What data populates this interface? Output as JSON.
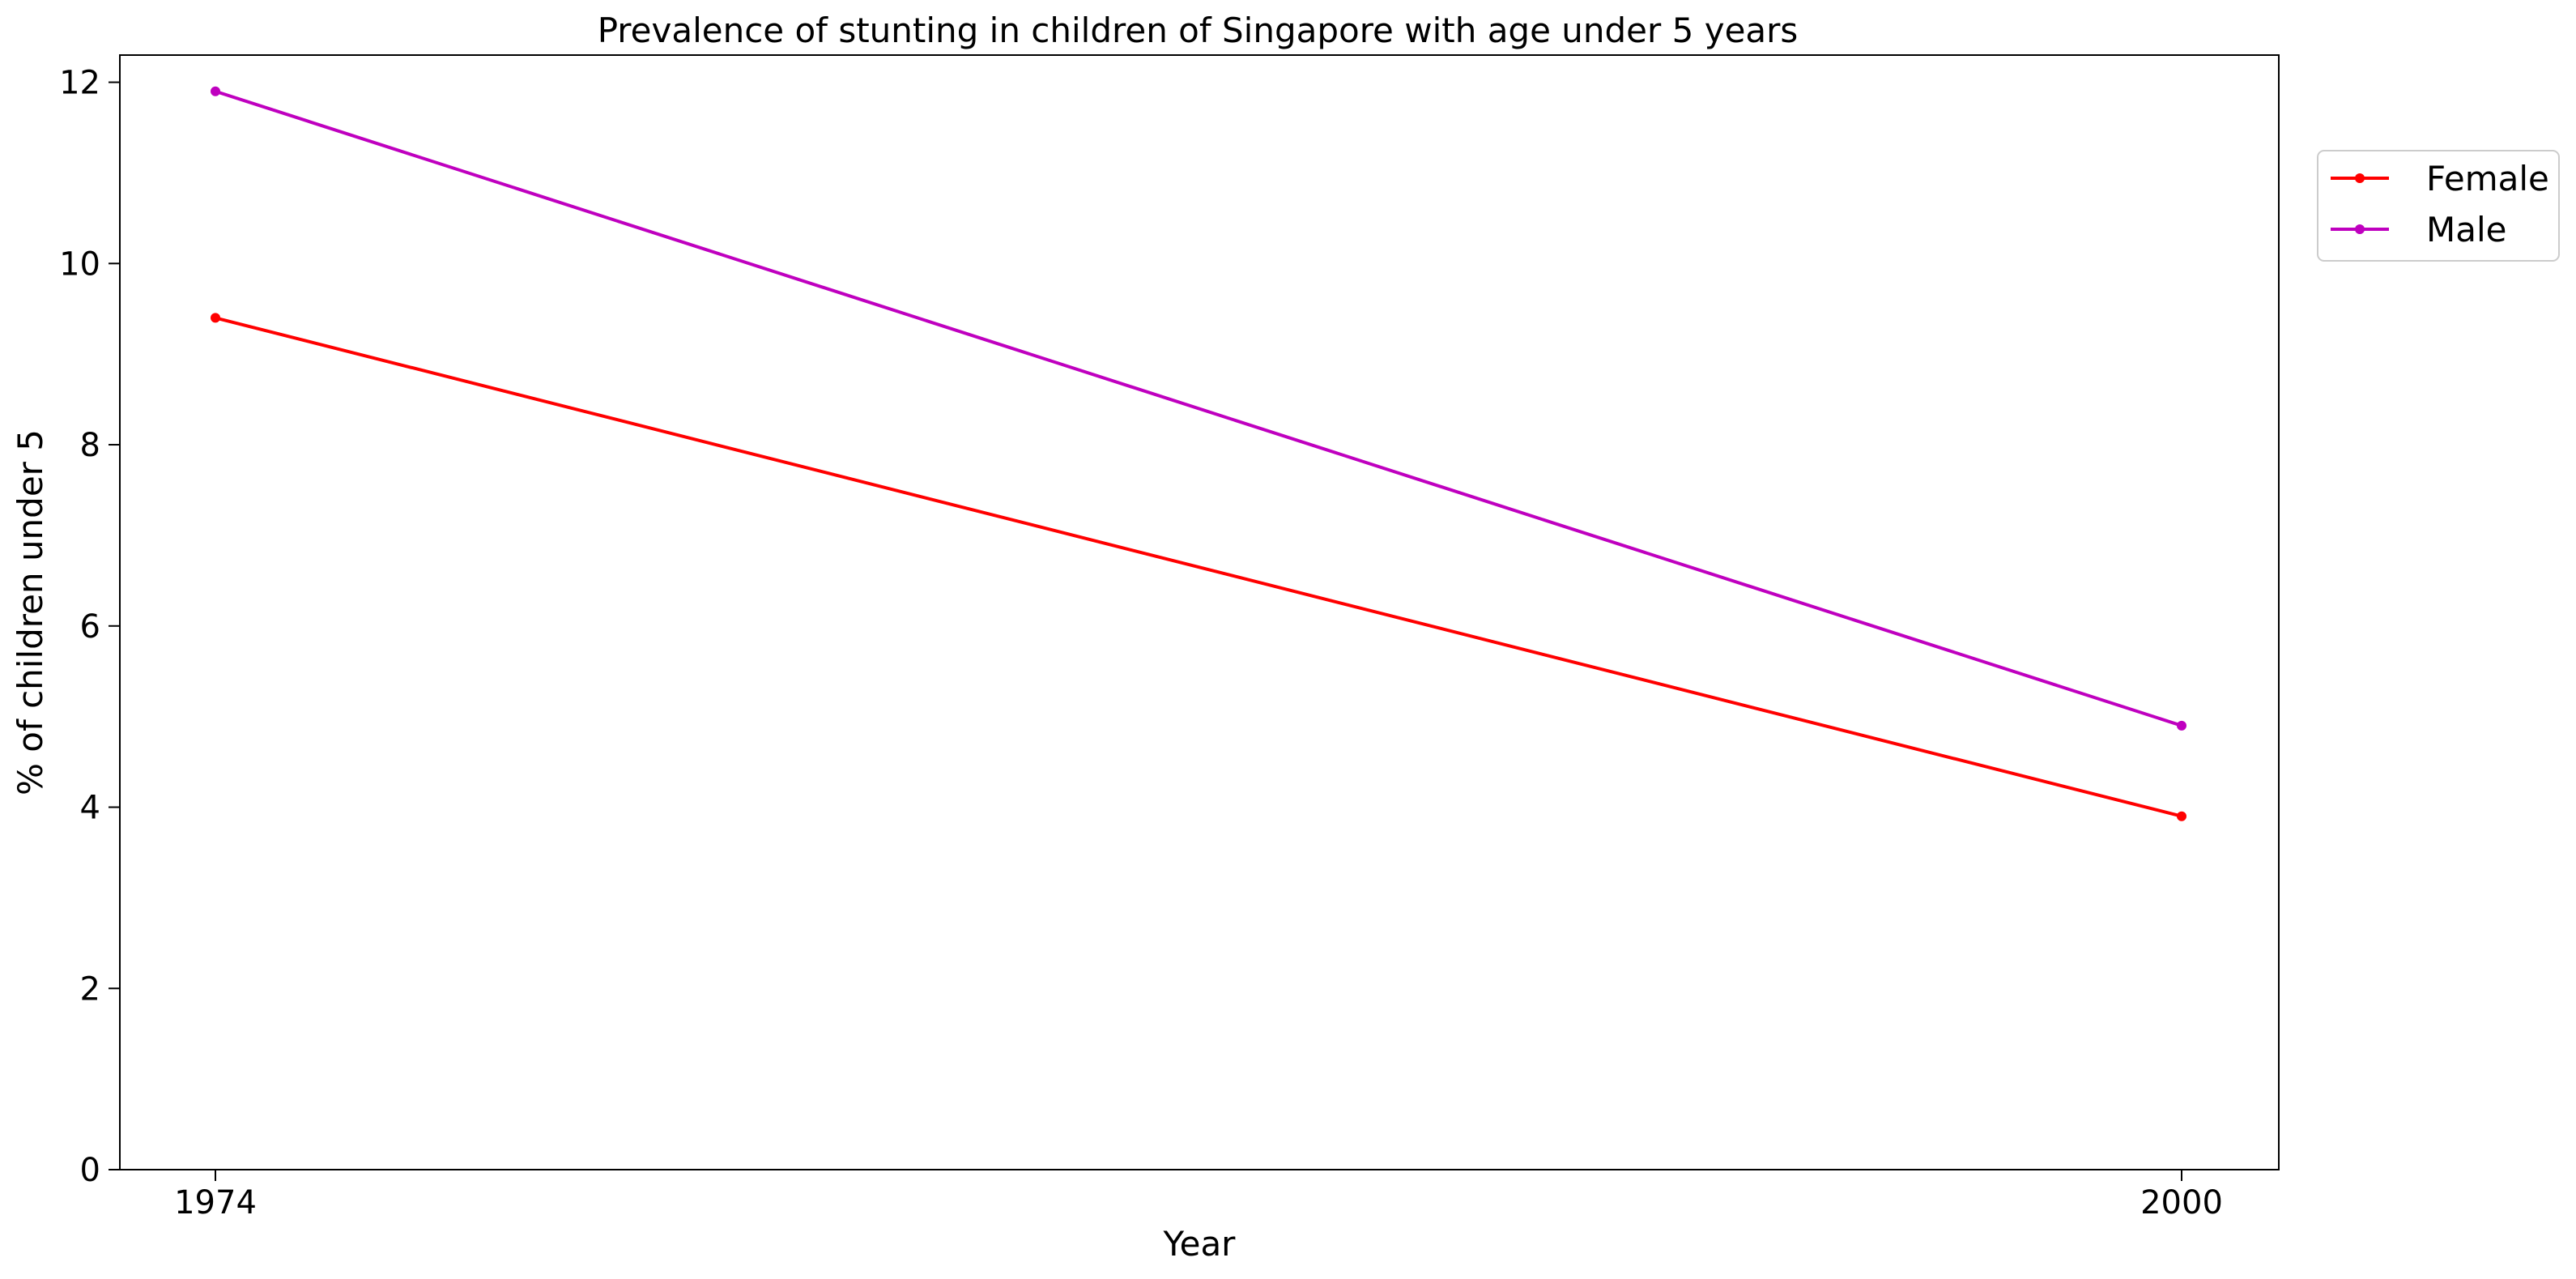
{
  "chart_data": {
    "type": "line",
    "title": "Prevalence of stunting in children of Singapore with age under 5 years",
    "xlabel": "Year",
    "ylabel": "% of children under 5",
    "x": [
      "1974",
      "2000"
    ],
    "ylim": [
      0,
      12.3
    ],
    "yticks": [
      "0",
      "2",
      "4",
      "6",
      "8",
      "10",
      "12"
    ],
    "grid": false,
    "legend_position": "outside-top-right",
    "series": [
      {
        "name": "Female",
        "values": [
          9.4,
          3.9
        ],
        "color": "#ff0000"
      },
      {
        "name": "Male",
        "values": [
          11.9,
          4.9
        ],
        "color": "#bf00bf"
      }
    ]
  }
}
